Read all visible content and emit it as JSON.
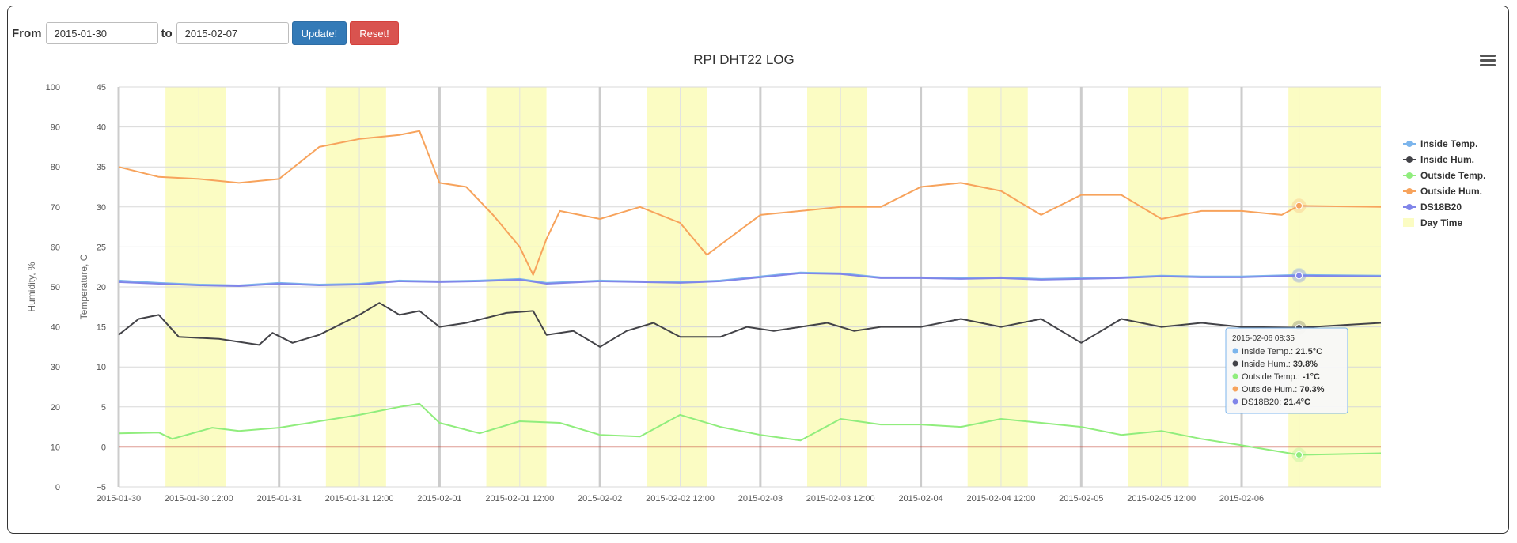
{
  "form": {
    "from_label": "From",
    "from_value": "2015-01-30",
    "to_label": "to",
    "to_value": "2015-02-07",
    "update_label": "Update!",
    "reset_label": "Reset!"
  },
  "menu_icon": "hamburger-menu-icon",
  "colors": {
    "inside_temp": "#7cb5ec",
    "inside_hum": "#434348",
    "outside_temp": "#90ed7d",
    "outside_hum": "#f7a35c",
    "ds18b20": "#8085e9",
    "day_time": "#fbfcc3",
    "zero_line": "#c0392b",
    "weekday_line": "#cccccc"
  },
  "tooltip": {
    "title": "2015-02-06 08:35",
    "rows": [
      {
        "label": "Inside Temp.: ",
        "value": "21.5°C",
        "color": "#7cb5ec"
      },
      {
        "label": "Inside Hum.: ",
        "value": "39.8%",
        "color": "#434348"
      },
      {
        "label": "Outside Temp.: ",
        "value": "-1°C",
        "color": "#90ed7d"
      },
      {
        "label": "Outside Hum.: ",
        "value": "70.3%",
        "color": "#f7a35c"
      },
      {
        "label": "DS18B20: ",
        "value": "21.4°C",
        "color": "#8085e9"
      }
    ]
  },
  "chart_data": {
    "type": "line",
    "title": "RPI DHT22 LOG",
    "x_range": [
      "2015-01-30 00:00",
      "2015-02-06 20:50"
    ],
    "x_ticks": [
      "2015-01-30",
      "2015-01-30 12:00",
      "2015-01-31",
      "2015-01-31 12:00",
      "2015-02-01",
      "2015-02-01 12:00",
      "2015-02-02",
      "2015-02-02 12:00",
      "2015-02-03",
      "2015-02-03 12:00",
      "2015-02-04",
      "2015-02-04 12:00",
      "2015-02-05",
      "2015-02-05 12:00",
      "2015-02-06"
    ],
    "y_axes": [
      {
        "label": "Humidity, %",
        "range": [
          0,
          100
        ],
        "ticks": [
          "0",
          "10",
          "20",
          "30",
          "40",
          "50",
          "60",
          "70",
          "80",
          "90",
          "100"
        ]
      },
      {
        "label": "Temperature, C",
        "range": [
          -5,
          45
        ],
        "ticks": [
          "−5",
          "0",
          "5",
          "10",
          "15",
          "20",
          "25",
          "30",
          "35",
          "40",
          "45"
        ]
      }
    ],
    "legend": {
      "position": "right",
      "entries": [
        "Inside Temp.",
        "Inside Hum.",
        "Outside Temp.",
        "Outside Hum.",
        "DS18B20",
        "Day Time"
      ]
    },
    "plot_bands": {
      "name": "Day Time",
      "ranges": [
        [
          "2015-01-30 07:00",
          "2015-01-30 16:00"
        ],
        [
          "2015-01-31 07:00",
          "2015-01-31 16:00"
        ],
        [
          "2015-02-01 07:00",
          "2015-02-01 16:00"
        ],
        [
          "2015-02-02 07:00",
          "2015-02-02 16:00"
        ],
        [
          "2015-02-03 07:00",
          "2015-02-03 16:00"
        ],
        [
          "2015-02-04 07:00",
          "2015-02-04 16:00"
        ],
        [
          "2015-02-05 07:00",
          "2015-02-05 16:00"
        ],
        [
          "2015-02-06 07:00",
          "2015-02-06 20:50"
        ]
      ]
    },
    "series": [
      {
        "name": "Inside Temp.",
        "axis": "Temperature, C",
        "marker": "circle",
        "points": [
          [
            "2015-01-30 00:00",
            20.8
          ],
          [
            "2015-01-30 06:00",
            20.5
          ],
          [
            "2015-01-30 12:00",
            20.3
          ],
          [
            "2015-01-30 18:00",
            20.2
          ],
          [
            "2015-01-31 00:00",
            20.5
          ],
          [
            "2015-01-31 06:00",
            20.3
          ],
          [
            "2015-01-31 12:00",
            20.4
          ],
          [
            "2015-01-31 18:00",
            20.8
          ],
          [
            "2015-02-01 00:00",
            20.7
          ],
          [
            "2015-02-01 06:00",
            20.8
          ],
          [
            "2015-02-01 12:00",
            21.0
          ],
          [
            "2015-02-01 16:00",
            20.5
          ],
          [
            "2015-02-02 00:00",
            20.8
          ],
          [
            "2015-02-02 06:00",
            20.7
          ],
          [
            "2015-02-02 12:00",
            20.6
          ],
          [
            "2015-02-02 18:00",
            20.8
          ],
          [
            "2015-02-03 00:00",
            21.3
          ],
          [
            "2015-02-03 06:00",
            21.8
          ],
          [
            "2015-02-03 12:00",
            21.7
          ],
          [
            "2015-02-03 18:00",
            21.2
          ],
          [
            "2015-02-04 00:00",
            21.2
          ],
          [
            "2015-02-04 06:00",
            21.1
          ],
          [
            "2015-02-04 12:00",
            21.2
          ],
          [
            "2015-02-04 18:00",
            21.0
          ],
          [
            "2015-02-05 00:00",
            21.1
          ],
          [
            "2015-02-05 06:00",
            21.2
          ],
          [
            "2015-02-05 12:00",
            21.4
          ],
          [
            "2015-02-05 18:00",
            21.3
          ],
          [
            "2015-02-06 00:00",
            21.3
          ],
          [
            "2015-02-06 08:35",
            21.5
          ],
          [
            "2015-02-06 20:50",
            21.4
          ]
        ]
      },
      {
        "name": "Inside Hum.",
        "axis": "Humidity, %",
        "marker": "diamond",
        "points": [
          [
            "2015-01-30 00:00",
            38
          ],
          [
            "2015-01-30 03:00",
            42
          ],
          [
            "2015-01-30 06:00",
            43
          ],
          [
            "2015-01-30 09:00",
            37.5
          ],
          [
            "2015-01-30 15:00",
            37
          ],
          [
            "2015-01-30 21:00",
            35.5
          ],
          [
            "2015-01-30 23:00",
            38.5
          ],
          [
            "2015-01-31 02:00",
            36
          ],
          [
            "2015-01-31 06:00",
            38
          ],
          [
            "2015-01-31 12:00",
            43
          ],
          [
            "2015-01-31 15:00",
            46
          ],
          [
            "2015-01-31 18:00",
            43
          ],
          [
            "2015-01-31 21:00",
            44
          ],
          [
            "2015-02-01 00:00",
            40
          ],
          [
            "2015-02-01 04:00",
            41
          ],
          [
            "2015-02-01 10:00",
            43.5
          ],
          [
            "2015-02-01 14:00",
            44
          ],
          [
            "2015-02-01 16:00",
            38
          ],
          [
            "2015-02-01 20:00",
            39
          ],
          [
            "2015-02-02 00:00",
            35
          ],
          [
            "2015-02-02 04:00",
            39
          ],
          [
            "2015-02-02 08:00",
            41
          ],
          [
            "2015-02-02 12:00",
            37.5
          ],
          [
            "2015-02-02 18:00",
            37.5
          ],
          [
            "2015-02-02 22:00",
            40
          ],
          [
            "2015-02-03 02:00",
            39
          ],
          [
            "2015-02-03 06:00",
            40
          ],
          [
            "2015-02-03 10:00",
            41
          ],
          [
            "2015-02-03 14:00",
            39
          ],
          [
            "2015-02-03 18:00",
            40
          ],
          [
            "2015-02-04 00:00",
            40
          ],
          [
            "2015-02-04 06:00",
            42
          ],
          [
            "2015-02-04 12:00",
            40
          ],
          [
            "2015-02-04 18:00",
            42
          ],
          [
            "2015-02-05 00:00",
            36
          ],
          [
            "2015-02-05 06:00",
            42
          ],
          [
            "2015-02-05 12:00",
            40
          ],
          [
            "2015-02-05 18:00",
            41
          ],
          [
            "2015-02-06 00:00",
            40
          ],
          [
            "2015-02-06 08:35",
            39.8
          ],
          [
            "2015-02-06 20:50",
            41
          ]
        ]
      },
      {
        "name": "Outside Temp.",
        "axis": "Temperature, C",
        "marker": "square",
        "points": [
          [
            "2015-01-30 00:00",
            1.7
          ],
          [
            "2015-01-30 06:00",
            1.8
          ],
          [
            "2015-01-30 08:00",
            1.0
          ],
          [
            "2015-01-30 14:00",
            2.4
          ],
          [
            "2015-01-30 18:00",
            2.0
          ],
          [
            "2015-01-31 00:00",
            2.4
          ],
          [
            "2015-01-31 06:00",
            3.2
          ],
          [
            "2015-01-31 12:00",
            4.0
          ],
          [
            "2015-01-31 18:00",
            5.0
          ],
          [
            "2015-01-31 21:00",
            5.4
          ],
          [
            "2015-02-01 00:00",
            3.0
          ],
          [
            "2015-02-01 06:00",
            1.7
          ],
          [
            "2015-02-01 12:00",
            3.2
          ],
          [
            "2015-02-01 18:00",
            3.0
          ],
          [
            "2015-02-02 00:00",
            1.5
          ],
          [
            "2015-02-02 06:00",
            1.3
          ],
          [
            "2015-02-02 12:00",
            4.0
          ],
          [
            "2015-02-02 18:00",
            2.5
          ],
          [
            "2015-02-03 00:00",
            1.5
          ],
          [
            "2015-02-03 06:00",
            0.8
          ],
          [
            "2015-02-03 12:00",
            3.5
          ],
          [
            "2015-02-03 18:00",
            2.8
          ],
          [
            "2015-02-04 00:00",
            2.8
          ],
          [
            "2015-02-04 06:00",
            2.5
          ],
          [
            "2015-02-04 12:00",
            3.5
          ],
          [
            "2015-02-04 18:00",
            3.0
          ],
          [
            "2015-02-05 00:00",
            2.5
          ],
          [
            "2015-02-05 06:00",
            1.5
          ],
          [
            "2015-02-05 12:00",
            2.0
          ],
          [
            "2015-02-05 18:00",
            1.0
          ],
          [
            "2015-02-06 00:00",
            0.2
          ],
          [
            "2015-02-06 08:35",
            -1.0
          ],
          [
            "2015-02-06 20:50",
            -0.8
          ]
        ]
      },
      {
        "name": "Outside Hum.",
        "axis": "Humidity, %",
        "marker": "triangle",
        "points": [
          [
            "2015-01-30 00:00",
            80
          ],
          [
            "2015-01-30 06:00",
            77.5
          ],
          [
            "2015-01-30 12:00",
            77
          ],
          [
            "2015-01-30 18:00",
            76
          ],
          [
            "2015-01-31 00:00",
            77
          ],
          [
            "2015-01-31 06:00",
            85
          ],
          [
            "2015-01-31 12:00",
            87
          ],
          [
            "2015-01-31 18:00",
            88
          ],
          [
            "2015-01-31 21:00",
            89
          ],
          [
            "2015-02-01 00:00",
            76
          ],
          [
            "2015-02-01 04:00",
            75
          ],
          [
            "2015-02-01 08:00",
            68
          ],
          [
            "2015-02-01 12:00",
            60
          ],
          [
            "2015-02-01 14:00",
            53
          ],
          [
            "2015-02-01 16:00",
            62
          ],
          [
            "2015-02-01 18:00",
            69
          ],
          [
            "2015-02-02 00:00",
            67
          ],
          [
            "2015-02-02 06:00",
            70
          ],
          [
            "2015-02-02 12:00",
            66
          ],
          [
            "2015-02-02 16:00",
            58
          ],
          [
            "2015-02-02 20:00",
            63
          ],
          [
            "2015-02-03 00:00",
            68
          ],
          [
            "2015-02-03 06:00",
            69
          ],
          [
            "2015-02-03 12:00",
            70
          ],
          [
            "2015-02-03 18:00",
            70
          ],
          [
            "2015-02-04 00:00",
            75
          ],
          [
            "2015-02-04 06:00",
            76
          ],
          [
            "2015-02-04 12:00",
            74
          ],
          [
            "2015-02-04 18:00",
            68
          ],
          [
            "2015-02-05 00:00",
            73
          ],
          [
            "2015-02-05 06:00",
            73
          ],
          [
            "2015-02-05 12:00",
            67
          ],
          [
            "2015-02-05 18:00",
            69
          ],
          [
            "2015-02-06 00:00",
            69
          ],
          [
            "2015-02-06 06:00",
            68
          ],
          [
            "2015-02-06 08:35",
            70.3
          ],
          [
            "2015-02-06 20:50",
            70
          ]
        ]
      },
      {
        "name": "DS18B20",
        "axis": "Temperature, C",
        "marker": "triangle-down",
        "points": [
          [
            "2015-01-30 00:00",
            20.6
          ],
          [
            "2015-01-30 06:00",
            20.4
          ],
          [
            "2015-01-30 12:00",
            20.2
          ],
          [
            "2015-01-30 18:00",
            20.1
          ],
          [
            "2015-01-31 00:00",
            20.4
          ],
          [
            "2015-01-31 06:00",
            20.2
          ],
          [
            "2015-01-31 12:00",
            20.3
          ],
          [
            "2015-01-31 18:00",
            20.7
          ],
          [
            "2015-02-01 00:00",
            20.6
          ],
          [
            "2015-02-01 06:00",
            20.7
          ],
          [
            "2015-02-01 12:00",
            20.9
          ],
          [
            "2015-02-01 16:00",
            20.4
          ],
          [
            "2015-02-02 00:00",
            20.7
          ],
          [
            "2015-02-02 06:00",
            20.6
          ],
          [
            "2015-02-02 12:00",
            20.5
          ],
          [
            "2015-02-02 18:00",
            20.7
          ],
          [
            "2015-02-03 00:00",
            21.2
          ],
          [
            "2015-02-03 06:00",
            21.7
          ],
          [
            "2015-02-03 12:00",
            21.6
          ],
          [
            "2015-02-03 18:00",
            21.1
          ],
          [
            "2015-02-04 00:00",
            21.1
          ],
          [
            "2015-02-04 06:00",
            21.0
          ],
          [
            "2015-02-04 12:00",
            21.1
          ],
          [
            "2015-02-04 18:00",
            20.9
          ],
          [
            "2015-02-05 00:00",
            21.0
          ],
          [
            "2015-02-05 06:00",
            21.1
          ],
          [
            "2015-02-05 12:00",
            21.3
          ],
          [
            "2015-02-05 18:00",
            21.2
          ],
          [
            "2015-02-06 00:00",
            21.2
          ],
          [
            "2015-02-06 08:35",
            21.4
          ],
          [
            "2015-02-06 20:50",
            21.3
          ]
        ]
      }
    ]
  }
}
